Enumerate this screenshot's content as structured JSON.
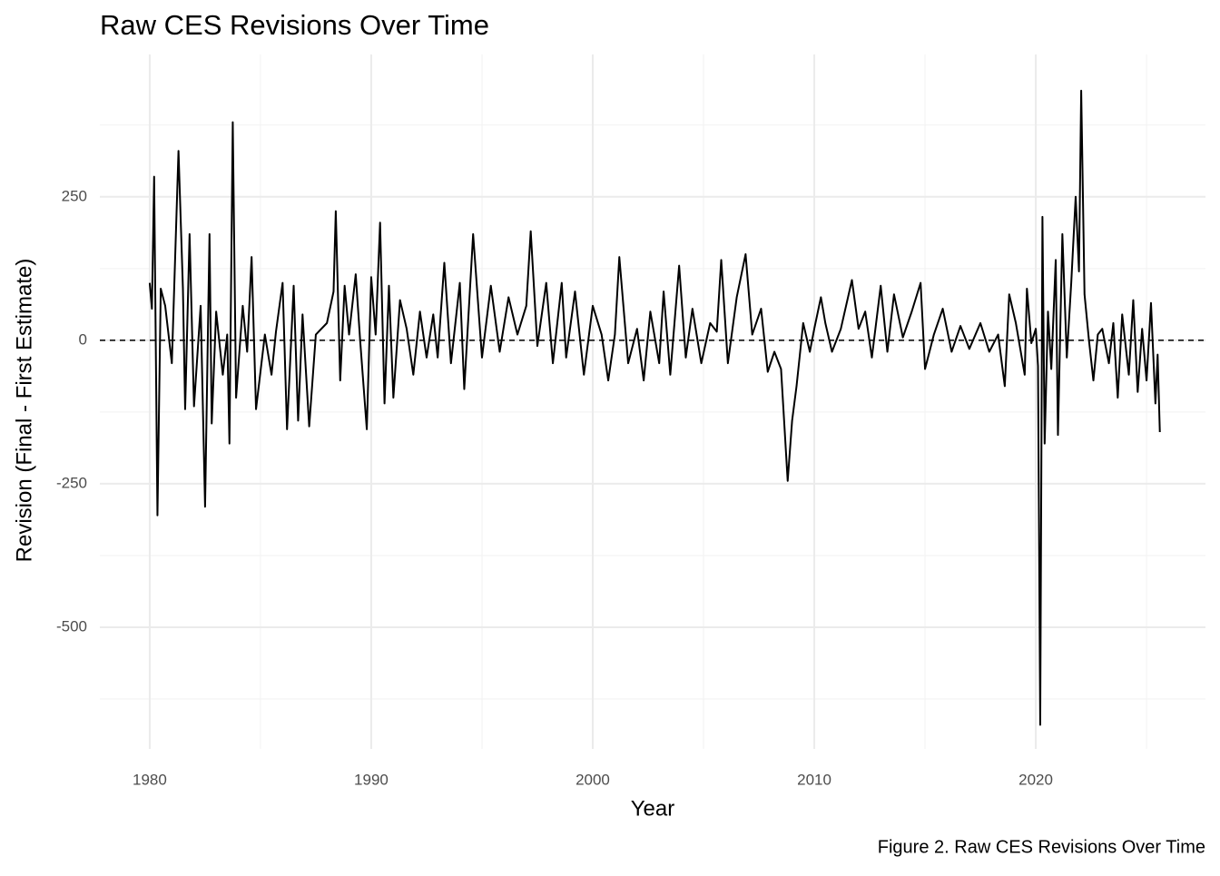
{
  "chart_data": {
    "type": "line",
    "title": "Raw CES Revisions Over Time",
    "xlabel": "Year",
    "ylabel": "Revision (Final - First Estimate)",
    "caption": "Figure 2. Raw CES Revisions Over Time",
    "xlim": [
      1977.75,
      2027.66
    ],
    "ylim": [
      -712,
      498
    ],
    "xticks": [
      1980,
      1990,
      2000,
      2010,
      2020
    ],
    "yticks": [
      -500,
      -250,
      0,
      250
    ],
    "grid": true,
    "hline": 0,
    "x": [
      1980.0,
      1980.1,
      1980.2,
      1980.35,
      1980.5,
      1980.7,
      1981.0,
      1981.3,
      1981.5,
      1981.6,
      1981.8,
      1982.0,
      1982.3,
      1982.5,
      1982.7,
      1982.8,
      1983.0,
      1983.3,
      1983.5,
      1983.6,
      1983.75,
      1983.9,
      1984.2,
      1984.4,
      1984.6,
      1984.8,
      1985.2,
      1985.5,
      1985.7,
      1986.0,
      1986.2,
      1986.5,
      1986.7,
      1986.9,
      1987.2,
      1987.5,
      1988.0,
      1988.3,
      1988.4,
      1988.6,
      1988.8,
      1989.0,
      1989.3,
      1989.5,
      1989.8,
      1990.0,
      1990.2,
      1990.4,
      1990.6,
      1990.8,
      1991.0,
      1991.3,
      1991.6,
      1991.9,
      1992.2,
      1992.5,
      1992.8,
      1993.0,
      1993.3,
      1993.6,
      1994.0,
      1994.2,
      1994.6,
      1995.0,
      1995.4,
      1995.8,
      1996.2,
      1996.6,
      1997.0,
      1997.2,
      1997.5,
      1997.9,
      1998.2,
      1998.6,
      1998.8,
      1999.2,
      1999.6,
      2000.0,
      2000.4,
      2000.7,
      2001.0,
      2001.2,
      2001.6,
      2002.0,
      2002.3,
      2002.6,
      2003.0,
      2003.2,
      2003.5,
      2003.9,
      2004.2,
      2004.5,
      2004.9,
      2005.3,
      2005.6,
      2005.8,
      2006.1,
      2006.5,
      2006.9,
      2007.2,
      2007.6,
      2007.9,
      2008.2,
      2008.5,
      2008.8,
      2009.0,
      2009.2,
      2009.5,
      2009.8,
      2010.0,
      2010.3,
      2010.5,
      2010.8,
      2011.2,
      2011.7,
      2012.0,
      2012.3,
      2012.6,
      2013.0,
      2013.3,
      2013.6,
      2014.0,
      2014.4,
      2014.8,
      2015.0,
      2015.4,
      2015.8,
      2016.2,
      2016.6,
      2017.0,
      2017.5,
      2017.9,
      2018.3,
      2018.6,
      2018.8,
      2019.1,
      2019.5,
      2019.6,
      2019.8,
      2020.0,
      2020.1,
      2020.2,
      2020.3,
      2020.4,
      2020.55,
      2020.7,
      2020.9,
      2021.0,
      2021.2,
      2021.4,
      2021.6,
      2021.8,
      2021.95,
      2022.05,
      2022.2,
      2022.4,
      2022.6,
      2022.8,
      2023.0,
      2023.3,
      2023.5,
      2023.7,
      2023.9,
      2024.2,
      2024.4,
      2024.6,
      2024.8,
      2025.0,
      2025.2,
      2025.4,
      2025.5,
      2025.6
    ],
    "series": [
      {
        "name": "Revision",
        "color": "#000000",
        "values": [
          100,
          55,
          285,
          -305,
          90,
          60,
          -40,
          330,
          90,
          -120,
          185,
          -115,
          60,
          -290,
          185,
          -145,
          50,
          -60,
          10,
          -180,
          380,
          -100,
          60,
          -20,
          145,
          -120,
          10,
          -60,
          15,
          100,
          -155,
          95,
          -140,
          45,
          -150,
          10,
          30,
          85,
          225,
          -70,
          95,
          10,
          115,
          0,
          -155,
          110,
          10,
          205,
          -110,
          95,
          -100,
          70,
          20,
          -60,
          50,
          -30,
          45,
          -30,
          135,
          -40,
          100,
          -85,
          185,
          -30,
          95,
          -20,
          75,
          10,
          60,
          190,
          -10,
          100,
          -40,
          100,
          -30,
          85,
          -60,
          60,
          10,
          -70,
          10,
          145,
          -40,
          20,
          -70,
          50,
          -40,
          85,
          -60,
          130,
          -30,
          55,
          -40,
          30,
          15,
          140,
          -40,
          75,
          150,
          10,
          55,
          -55,
          -20,
          -50,
          -245,
          -140,
          -80,
          30,
          -20,
          20,
          75,
          30,
          -20,
          20,
          105,
          20,
          50,
          -30,
          95,
          -20,
          80,
          5,
          50,
          100,
          -50,
          10,
          55,
          -20,
          25,
          -15,
          30,
          -20,
          10,
          -80,
          80,
          30,
          -60,
          90,
          -5,
          20,
          -45,
          -670,
          215,
          -180,
          50,
          -50,
          140,
          -165,
          185,
          -30,
          100,
          250,
          120,
          435,
          80,
          0,
          -70,
          10,
          20,
          -40,
          30,
          -100,
          45,
          -60,
          70,
          -90,
          20,
          -70,
          65,
          -110,
          -25,
          -160
        ]
      }
    ]
  }
}
